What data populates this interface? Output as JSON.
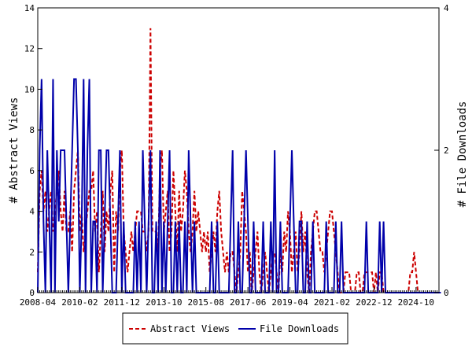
{
  "chart_data": {
    "type": "line",
    "title": "",
    "xlabel": "",
    "ylabel": "# Abstract Views",
    "y2label": "# File Downloads",
    "x_tick_labels": [
      "2008-04",
      "2010-02",
      "2011-12",
      "2013-10",
      "2015-08",
      "2017-06",
      "2019-04",
      "2021-02",
      "2022-12",
      "2024-10"
    ],
    "x_tick_month_index": [
      0,
      22,
      44,
      66,
      88,
      110,
      132,
      154,
      176,
      198
    ],
    "x_range_months": [
      0,
      210
    ],
    "ylim": [
      0,
      14
    ],
    "y_ticks": [
      0,
      2,
      4,
      6,
      8,
      10,
      12,
      14
    ],
    "y2lim": [
      0,
      4
    ],
    "y2_ticks": [
      0,
      2,
      4
    ],
    "grid": false,
    "legend_position": "bottom",
    "series": [
      {
        "name": "Abstract Views",
        "axis": "left",
        "color": "#cc0000",
        "style": "dashed",
        "values": [
          1,
          5,
          6,
          4,
          5,
          3,
          4,
          5,
          3,
          4,
          5,
          6,
          4,
          3,
          5,
          3,
          3,
          4,
          2,
          5,
          6,
          7,
          3,
          4,
          2,
          3,
          4,
          5,
          5,
          6,
          3,
          4,
          1,
          3,
          5,
          2,
          4,
          3,
          5,
          6,
          1,
          4,
          3,
          6,
          7,
          3,
          2,
          1,
          2,
          3,
          2,
          3,
          4,
          4,
          4,
          3,
          3,
          2,
          3,
          13,
          3,
          3,
          3,
          2,
          6,
          7,
          3,
          4,
          5,
          2,
          3,
          6,
          4,
          2,
          5,
          3,
          4,
          6,
          5,
          3,
          2,
          3,
          5,
          3,
          4,
          3,
          2,
          3,
          2,
          3,
          1,
          2,
          3,
          2,
          4,
          5,
          3,
          2,
          1,
          2,
          1,
          2,
          2,
          1,
          0,
          1,
          2,
          5,
          4,
          3,
          1,
          2,
          0,
          1,
          2,
          3,
          1,
          0,
          1,
          2,
          1,
          0,
          1,
          2,
          2,
          1,
          0,
          2,
          1,
          3,
          2,
          4,
          3,
          1,
          2,
          3,
          1,
          2,
          4,
          2,
          3,
          1,
          0,
          2,
          3,
          4,
          4,
          3,
          2,
          2,
          1,
          2,
          3,
          4,
          4,
          3,
          2,
          1,
          0,
          0,
          0,
          1,
          1,
          1,
          0,
          0,
          0,
          1,
          1,
          0,
          0,
          1,
          1,
          1,
          1,
          1,
          0,
          1,
          0,
          1,
          1,
          0,
          0,
          0,
          0,
          0,
          0,
          0,
          0,
          0,
          0,
          0,
          0,
          0,
          0,
          1,
          1,
          2,
          1,
          0,
          0,
          0,
          0,
          0,
          0,
          0,
          0,
          0,
          0,
          0,
          0
        ]
      },
      {
        "name": "File Downloads",
        "axis": "right",
        "color": "#0000aa",
        "style": "solid",
        "values": [
          0,
          2,
          3,
          1,
          0,
          2,
          1,
          0,
          3,
          0,
          2,
          1,
          2,
          2,
          2,
          1,
          0,
          1,
          2,
          3,
          3,
          2,
          0,
          1,
          3,
          0,
          2,
          3,
          0,
          1,
          1,
          0,
          2,
          2,
          0,
          1,
          2,
          2,
          1,
          0,
          0,
          0,
          1,
          2,
          0,
          1,
          0,
          0,
          0,
          0,
          0,
          1,
          0,
          1,
          0,
          2,
          1,
          0,
          1,
          2,
          0,
          0,
          1,
          0,
          2,
          0,
          1,
          0,
          1,
          2,
          0,
          0,
          1,
          0,
          1,
          0,
          0,
          1,
          0,
          2,
          1,
          0,
          1,
          0,
          0,
          0,
          0,
          0,
          0,
          0,
          0,
          1,
          0,
          0,
          1,
          0,
          0,
          0,
          0,
          0,
          0,
          1,
          2,
          0,
          0,
          1,
          0,
          0,
          1,
          2,
          1,
          0,
          0,
          1,
          0,
          0,
          0,
          0,
          1,
          0,
          0,
          0,
          1,
          0,
          2,
          0,
          0,
          1,
          0,
          0,
          0,
          0,
          1,
          2,
          1,
          0,
          0,
          1,
          1,
          0,
          0,
          1,
          0,
          0,
          1,
          0,
          0,
          0,
          0,
          0,
          0,
          1,
          0,
          0,
          0,
          0,
          1,
          0,
          0,
          1,
          0,
          0,
          0,
          0,
          0,
          0,
          0,
          0,
          0,
          0,
          0,
          0,
          1,
          0,
          0,
          0,
          0,
          0,
          0,
          1,
          0,
          1,
          0,
          0,
          0,
          0,
          0,
          0,
          0,
          0,
          0,
          0,
          0,
          0,
          0,
          0,
          0,
          0,
          0,
          0,
          0,
          0,
          0,
          0,
          0,
          0,
          0,
          0,
          0,
          0,
          0,
          0
        ]
      }
    ]
  }
}
